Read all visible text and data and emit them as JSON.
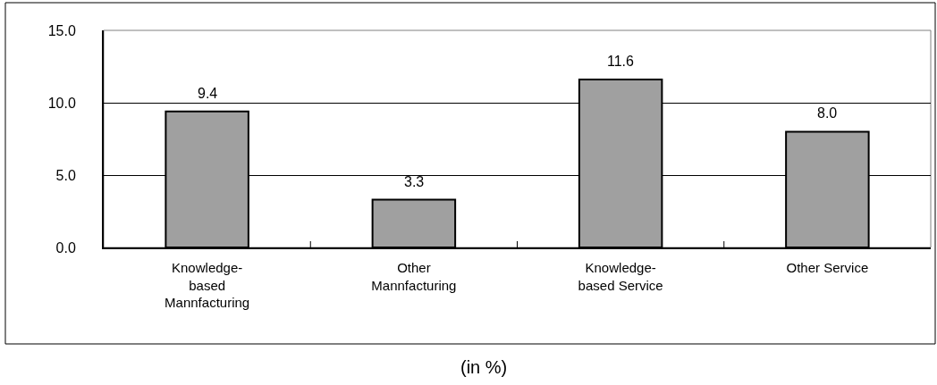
{
  "chart_data": {
    "type": "bar",
    "categories": [
      "Knowledge-\nbased\nMannfacturing",
      "Other\nMannfacturing",
      "Knowledge-\nbased Service",
      "Other Service"
    ],
    "values": [
      9.4,
      3.3,
      11.6,
      8.0
    ],
    "value_labels": [
      "9.4",
      "3.3",
      "11.6",
      "8.0"
    ],
    "color": "#a0a0a0",
    "ylim": [
      0,
      15
    ],
    "yticks": [
      {
        "value": 0,
        "label": "0.0"
      },
      {
        "value": 5,
        "label": "5.0"
      },
      {
        "value": 10,
        "label": "10.0"
      },
      {
        "value": 15,
        "label": "15.0"
      }
    ],
    "grid": "y",
    "annotations": [
      "(in %)"
    ]
  }
}
